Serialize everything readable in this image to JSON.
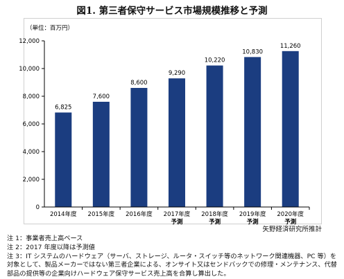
{
  "title": "図1. 第三者保守サービス市場規模推移と予測",
  "source": "矢野経済研究所推計",
  "notes": [
    "注 1：事業者売上高ベース",
    "注 2：2017 年度以降は予測値",
    "注 3：IT システムのハードウェア（サーバ、ストレージ、ルータ・スイッチ等のネットワーク関連機器、PC 等）を対象として、製品メーカーではない第三者企業による、オンサイト又はセンドバックでの修理・メンテナンス、代替部品の提供等の企業向けハードウェア保守サービス売上高を合算し算出した。"
  ],
  "chart_data": {
    "type": "bar",
    "title": "図1. 第三者保守サービス市場規模推移と予測",
    "ylabel": "（単位：百万円）",
    "xlabel": "",
    "categories": [
      [
        "2014年度"
      ],
      [
        "2015年度"
      ],
      [
        "2016年度"
      ],
      [
        "2017年度",
        "予測"
      ],
      [
        "2018年度",
        "予測"
      ],
      [
        "2019年度",
        "予測"
      ],
      [
        "2020年度",
        "予測"
      ]
    ],
    "values": [
      6825,
      7600,
      8600,
      9290,
      10220,
      10830,
      11260
    ],
    "value_labels": [
      "6,825",
      "7,600",
      "8,600",
      "9,290",
      "10,220",
      "10,830",
      "11,260"
    ],
    "ylim": [
      0,
      12000
    ],
    "yticks": [
      0,
      2000,
      4000,
      6000,
      8000,
      10000,
      12000
    ],
    "ytick_labels": [
      "0",
      "2,000",
      "4,000",
      "6,000",
      "8,000",
      "10,000",
      "12,000"
    ],
    "grid": false,
    "bar_color": "#1b3d80"
  }
}
